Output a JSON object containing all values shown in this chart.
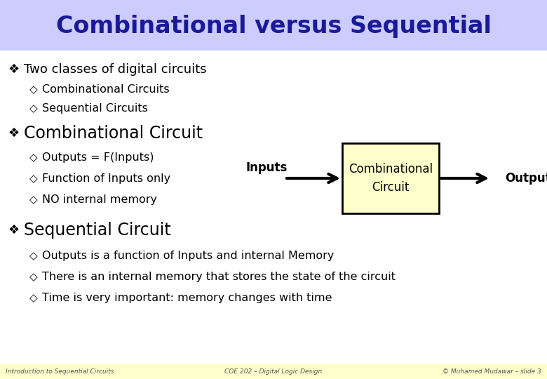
{
  "title": "Combinational versus Sequential",
  "title_color": "#1a1a99",
  "title_bg": "#ccccff",
  "slide_bg": "#ffffff",
  "footer_bg": "#ffffcc",
  "bullet1": "Two classes of digital circuits",
  "sub1a": "Combinational Circuits",
  "sub1b": "Sequential Circuits",
  "bullet2": "Combinational Circuit",
  "sub2a": "Outputs = F(Inputs)",
  "sub2b": "Function of Inputs only",
  "sub2c": "NO internal memory",
  "bullet3": "Sequential Circuit",
  "sub3a": "Outputs is a function of Inputs and internal Memory",
  "sub3b": "There is an internal memory that stores the state of the circuit",
  "sub3c": "Time is very important: memory changes with time",
  "box_label1": "Combinational",
  "box_label2": "Circuit",
  "box_fill": "#ffffcc",
  "box_edge": "#000000",
  "arrow_label_left": "Inputs",
  "arrow_label_right": "Outputs",
  "footer_left": "Introduction to Sequential Circuits",
  "footer_center": "COE 202 – Digital Logic Design",
  "footer_right": "© Muhamed Mudawar – slide 3",
  "text_color": "#000000"
}
